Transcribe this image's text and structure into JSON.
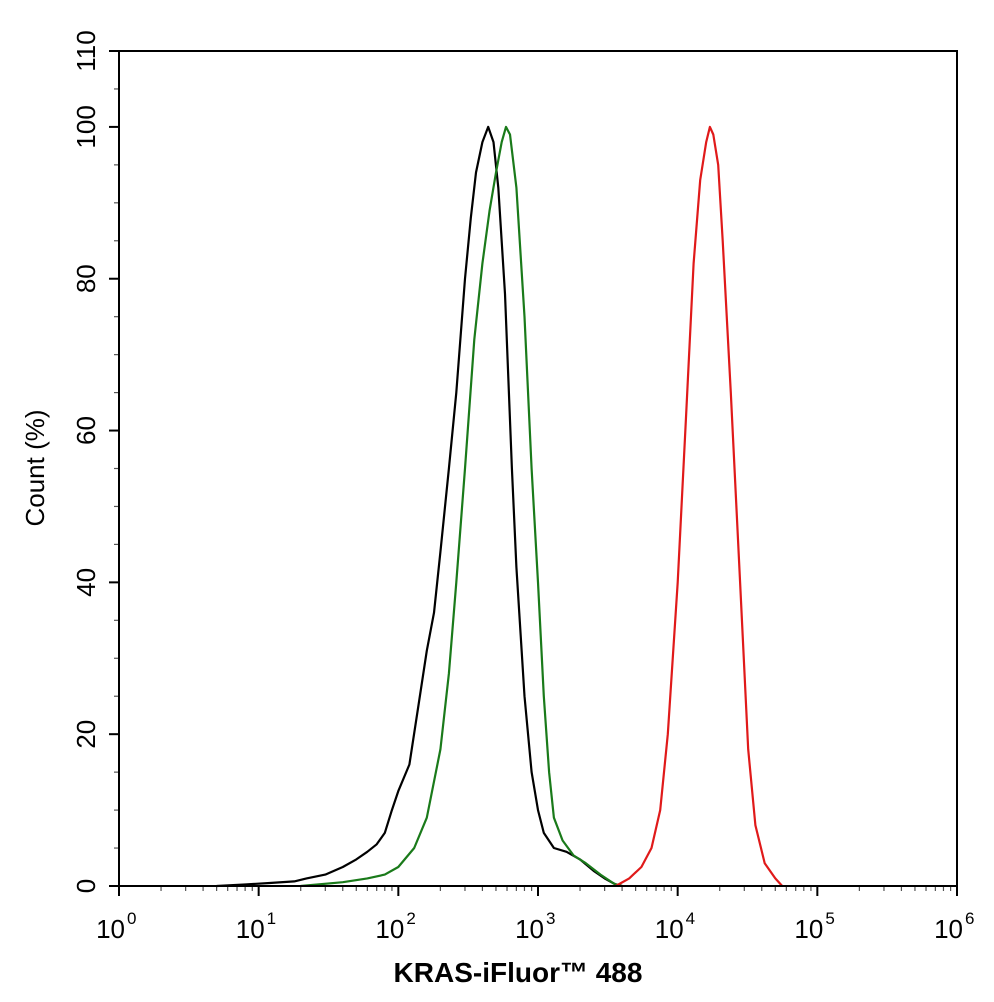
{
  "chart_data": {
    "type": "line",
    "xscale": "log",
    "xlim": [
      1,
      1000000
    ],
    "ylim": [
      0,
      110
    ],
    "xlabel": "KRAS-iFluor™ 488",
    "ylabel": "Count  (%)",
    "grid": false,
    "x_ticks": [
      {
        "base": "10",
        "exp": "0",
        "value": 1
      },
      {
        "base": "10",
        "exp": "1",
        "value": 10
      },
      {
        "base": "10",
        "exp": "2",
        "value": 100
      },
      {
        "base": "10",
        "exp": "3",
        "value": 1000
      },
      {
        "base": "10",
        "exp": "4",
        "value": 10000
      },
      {
        "base": "10",
        "exp": "5",
        "value": 100000
      },
      {
        "base": "10",
        "exp": "6",
        "value": 1000000
      }
    ],
    "y_ticks": [
      "0",
      "20",
      "40",
      "60",
      "80",
      "100",
      "110"
    ],
    "series": [
      {
        "color": "#000000",
        "points": [
          [
            5,
            0
          ],
          [
            8,
            0.2
          ],
          [
            12,
            0.4
          ],
          [
            18,
            0.6
          ],
          [
            22,
            1
          ],
          [
            30,
            1.5
          ],
          [
            40,
            2.5
          ],
          [
            50,
            3.5
          ],
          [
            60,
            4.5
          ],
          [
            70,
            5.5
          ],
          [
            80,
            7
          ],
          [
            90,
            10
          ],
          [
            100,
            12.5
          ],
          [
            120,
            16
          ],
          [
            140,
            24
          ],
          [
            160,
            31
          ],
          [
            180,
            36
          ],
          [
            200,
            44
          ],
          [
            230,
            55
          ],
          [
            260,
            65
          ],
          [
            300,
            80
          ],
          [
            330,
            88
          ],
          [
            360,
            94
          ],
          [
            400,
            98
          ],
          [
            440,
            100
          ],
          [
            480,
            98
          ],
          [
            520,
            92
          ],
          [
            580,
            78
          ],
          [
            650,
            55
          ],
          [
            700,
            42
          ],
          [
            800,
            25
          ],
          [
            900,
            15
          ],
          [
            1000,
            10
          ],
          [
            1100,
            7
          ],
          [
            1300,
            5
          ],
          [
            1600,
            4.5
          ],
          [
            2000,
            3.5
          ],
          [
            2500,
            2
          ],
          [
            3000,
            1
          ],
          [
            3600,
            0.2
          ],
          [
            4000,
            0
          ]
        ]
      },
      {
        "color": "#1a7a1a",
        "points": [
          [
            20,
            0
          ],
          [
            40,
            0.5
          ],
          [
            60,
            1
          ],
          [
            80,
            1.5
          ],
          [
            100,
            2.5
          ],
          [
            130,
            5
          ],
          [
            160,
            9
          ],
          [
            200,
            18
          ],
          [
            230,
            28
          ],
          [
            260,
            40
          ],
          [
            300,
            55
          ],
          [
            350,
            72
          ],
          [
            400,
            82
          ],
          [
            450,
            89
          ],
          [
            500,
            94
          ],
          [
            550,
            98
          ],
          [
            590,
            100
          ],
          [
            630,
            99
          ],
          [
            700,
            92
          ],
          [
            800,
            75
          ],
          [
            900,
            55
          ],
          [
            1000,
            40
          ],
          [
            1100,
            25
          ],
          [
            1200,
            15
          ],
          [
            1300,
            9
          ],
          [
            1500,
            6
          ],
          [
            1800,
            4
          ],
          [
            2200,
            3
          ],
          [
            2800,
            1.5
          ],
          [
            3500,
            0.3
          ],
          [
            4000,
            0
          ]
        ]
      },
      {
        "color": "#e01a1a",
        "points": [
          [
            3600,
            0
          ],
          [
            4500,
            1
          ],
          [
            5500,
            2.5
          ],
          [
            6500,
            5
          ],
          [
            7500,
            10
          ],
          [
            8500,
            20
          ],
          [
            10000,
            40
          ],
          [
            11500,
            62
          ],
          [
            13000,
            82
          ],
          [
            14500,
            93
          ],
          [
            16000,
            98
          ],
          [
            17000,
            100
          ],
          [
            18000,
            99
          ],
          [
            19500,
            95
          ],
          [
            21000,
            85
          ],
          [
            24000,
            65
          ],
          [
            28000,
            40
          ],
          [
            32000,
            18
          ],
          [
            36000,
            8
          ],
          [
            42000,
            3
          ],
          [
            50000,
            1
          ],
          [
            56000,
            0
          ]
        ]
      }
    ]
  }
}
